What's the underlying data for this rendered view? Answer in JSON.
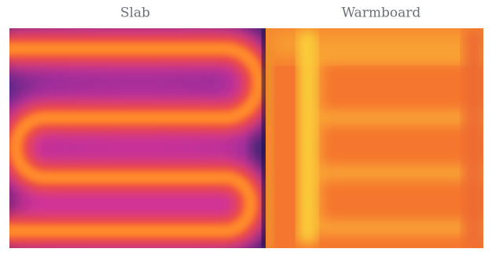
{
  "panels": [
    {
      "label": "Slab"
    },
    {
      "label": "Warmboard"
    }
  ]
}
